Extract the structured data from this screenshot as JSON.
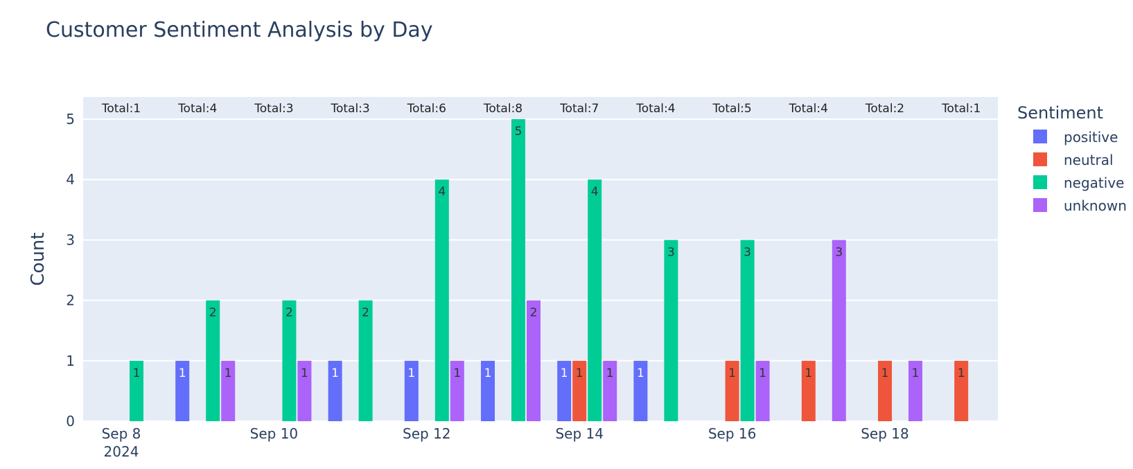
{
  "chart_data": {
    "type": "bar",
    "title": "Customer Sentiment Analysis by Day",
    "xlabel": "",
    "ylabel": "Count",
    "ylim": [
      0,
      5
    ],
    "y_ticks": [
      0,
      1,
      2,
      3,
      4,
      5
    ],
    "categories": [
      "2024-09-08",
      "2024-09-09",
      "2024-09-10",
      "2024-09-11",
      "2024-09-12",
      "2024-09-13",
      "2024-09-14",
      "2024-09-15",
      "2024-09-16",
      "2024-09-17",
      "2024-09-18",
      "2024-09-19"
    ],
    "x_tick_labels": [
      {
        "date": "2024-09-08",
        "line1": "Sep 8",
        "line2": "2024"
      },
      {
        "date": "2024-09-10",
        "line1": "Sep 10",
        "line2": ""
      },
      {
        "date": "2024-09-12",
        "line1": "Sep 12",
        "line2": ""
      },
      {
        "date": "2024-09-14",
        "line1": "Sep 14",
        "line2": ""
      },
      {
        "date": "2024-09-16",
        "line1": "Sep 16",
        "line2": ""
      },
      {
        "date": "2024-09-18",
        "line1": "Sep 18",
        "line2": ""
      }
    ],
    "series": [
      {
        "name": "positive",
        "color": "#636efa",
        "values": [
          0,
          1,
          0,
          1,
          1,
          1,
          1,
          1,
          0,
          0,
          0,
          0
        ]
      },
      {
        "name": "neutral",
        "color": "#ef553b",
        "values": [
          0,
          0,
          0,
          0,
          0,
          0,
          1,
          0,
          1,
          1,
          1,
          1
        ]
      },
      {
        "name": "negative",
        "color": "#00cc96",
        "values": [
          1,
          2,
          2,
          2,
          4,
          5,
          4,
          3,
          3,
          0,
          0,
          0
        ]
      },
      {
        "name": "unknown",
        "color": "#ab63fa",
        "values": [
          0,
          1,
          1,
          0,
          1,
          2,
          1,
          0,
          1,
          3,
          1,
          0
        ]
      }
    ],
    "totals": [
      "Total:1",
      "Total:4",
      "Total:3",
      "Total:3",
      "Total:6",
      "Total:8",
      "Total:7",
      "Total:4",
      "Total:5",
      "Total:4",
      "Total:2",
      "Total:1"
    ],
    "legend": {
      "title": "Sentiment",
      "position": "right"
    },
    "grid": true,
    "plot_background": "#e5ecf6"
  }
}
